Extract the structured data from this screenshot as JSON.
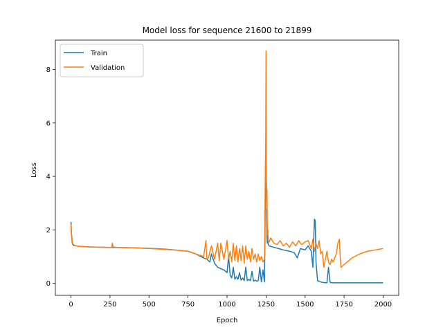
{
  "chart_data": {
    "type": "line",
    "title": "Model loss for sequence 21600 to 21899",
    "xlabel": "Epoch",
    "ylabel": "Loss",
    "xlim": [
      -100,
      2100
    ],
    "ylim": [
      -0.45,
      9.1
    ],
    "xticks": [
      0,
      250,
      500,
      750,
      1000,
      1250,
      1500,
      1750,
      2000
    ],
    "yticks": [
      0,
      2,
      4,
      6,
      8
    ],
    "grid": false,
    "legend": "upper-left",
    "series": [
      {
        "name": "Train",
        "color": "#1f77b4",
        "x": [
          0,
          3,
          8,
          15,
          30,
          60,
          120,
          200,
          300,
          400,
          500,
          600,
          700,
          750,
          800,
          850,
          870,
          890,
          900,
          920,
          940,
          960,
          980,
          1000,
          1010,
          1020,
          1030,
          1040,
          1050,
          1060,
          1070,
          1080,
          1090,
          1100,
          1110,
          1120,
          1130,
          1140,
          1150,
          1160,
          1170,
          1180,
          1190,
          1200,
          1210,
          1220,
          1230,
          1240,
          1245,
          1248,
          1250,
          1252,
          1254,
          1256,
          1258,
          1260,
          1262,
          1265,
          1270,
          1280,
          1300,
          1330,
          1360,
          1400,
          1430,
          1450,
          1470,
          1500,
          1520,
          1540,
          1550,
          1560,
          1565,
          1570,
          1580,
          1600,
          1620,
          1640,
          1650,
          1660,
          1665,
          1670,
          1680,
          1700,
          1720,
          1725,
          1730,
          1750,
          1800,
          1900,
          2000
        ],
        "y": [
          2.3,
          1.9,
          1.5,
          1.42,
          1.4,
          1.38,
          1.36,
          1.35,
          1.34,
          1.33,
          1.31,
          1.28,
          1.23,
          1.2,
          1.1,
          0.95,
          0.9,
          0.8,
          1.1,
          0.75,
          0.6,
          0.55,
          0.5,
          0.4,
          1.0,
          0.3,
          0.2,
          0.6,
          0.15,
          0.25,
          0.15,
          0.4,
          0.12,
          0.2,
          0.1,
          0.6,
          0.1,
          0.15,
          0.1,
          0.45,
          0.08,
          0.12,
          0.08,
          0.1,
          0.6,
          0.05,
          0.5,
          0.05,
          3.0,
          4.5,
          5.8,
          3.8,
          2.5,
          1.8,
          1.5,
          1.8,
          1.55,
          1.45,
          1.4,
          1.38,
          1.35,
          1.3,
          1.25,
          1.2,
          1.15,
          0.95,
          1.3,
          1.25,
          1.4,
          1.2,
          0.6,
          2.4,
          2.35,
          0.8,
          0.1,
          0.05,
          0.03,
          0.02,
          0.6,
          0.05,
          0.02,
          0.03,
          0.02,
          0.02,
          0.02,
          0.02,
          0.02,
          0.02,
          0.02,
          0.02,
          0.02
        ]
      },
      {
        "name": "Validation",
        "color": "#ff7f0e",
        "x": [
          0,
          3,
          6,
          10,
          15,
          30,
          60,
          120,
          200,
          260,
          265,
          270,
          300,
          400,
          500,
          600,
          700,
          750,
          800,
          850,
          865,
          870,
          880,
          900,
          920,
          940,
          950,
          960,
          980,
          1000,
          1010,
          1020,
          1030,
          1040,
          1050,
          1060,
          1070,
          1080,
          1090,
          1100,
          1110,
          1120,
          1130,
          1140,
          1150,
          1160,
          1170,
          1180,
          1190,
          1200,
          1210,
          1220,
          1230,
          1240,
          1245,
          1248,
          1250,
          1252,
          1254,
          1256,
          1258,
          1260,
          1262,
          1264,
          1270,
          1280,
          1300,
          1320,
          1340,
          1360,
          1380,
          1400,
          1420,
          1440,
          1460,
          1470,
          1480,
          1500,
          1520,
          1530,
          1540,
          1550,
          1560,
          1570,
          1580,
          1590,
          1600,
          1610,
          1620,
          1640,
          1650,
          1660,
          1670,
          1680,
          1700,
          1710,
          1720,
          1725,
          1730,
          1750,
          1800,
          1850,
          1900,
          1950,
          2000
        ],
        "y": [
          2.2,
          1.8,
          1.75,
          1.5,
          1.45,
          1.4,
          1.38,
          1.36,
          1.35,
          1.34,
          1.5,
          1.36,
          1.34,
          1.33,
          1.3,
          1.27,
          1.23,
          1.2,
          1.1,
          1.0,
          1.6,
          0.9,
          0.95,
          1.4,
          0.9,
          1.5,
          0.85,
          1.5,
          0.9,
          1.6,
          0.9,
          1.2,
          0.8,
          1.5,
          0.85,
          1.4,
          0.8,
          1.3,
          0.85,
          1.4,
          0.75,
          1.4,
          0.9,
          1.2,
          0.8,
          1.3,
          0.9,
          1.1,
          0.8,
          1.1,
          0.85,
          1.0,
          0.8,
          0.9,
          3.9,
          5.5,
          8.7,
          4.0,
          2.8,
          3.5,
          2.2,
          1.8,
          2.0,
          1.6,
          1.55,
          1.7,
          1.5,
          1.45,
          1.6,
          1.4,
          1.5,
          1.35,
          1.55,
          1.4,
          1.6,
          1.5,
          1.45,
          1.55,
          1.6,
          1.45,
          1.3,
          1.65,
          1.2,
          1.5,
          1.3,
          1.6,
          1.1,
          1.2,
          0.6,
          1.2,
          0.8,
          0.7,
          0.9,
          0.8,
          1.1,
          1.5,
          1.65,
          1.0,
          0.6,
          0.7,
          0.95,
          1.1,
          1.2,
          1.25,
          1.3
        ]
      }
    ]
  }
}
